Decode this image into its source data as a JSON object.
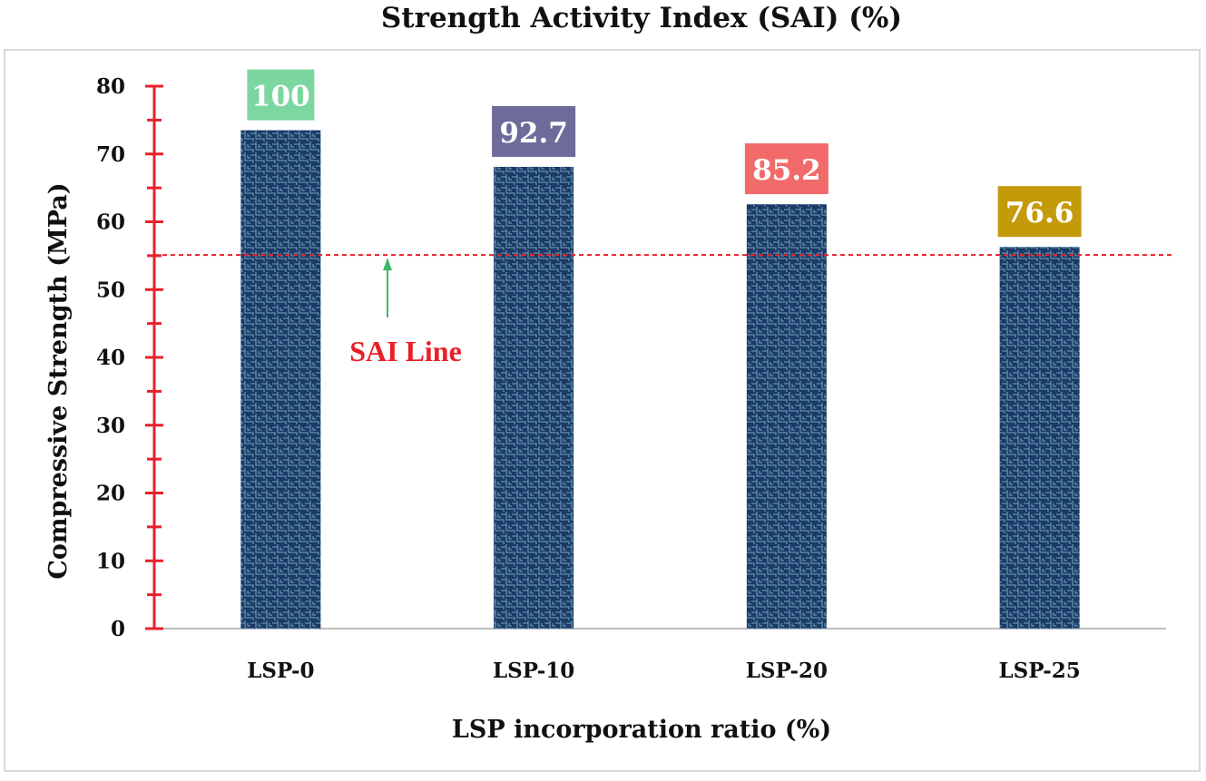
{
  "chart_data": {
    "type": "bar",
    "title": "Strength Activity Index (SAI) (%)",
    "xlabel": "LSP incorporation ratio (%)",
    "ylabel": "Compressive Strength (MPa)",
    "ylim": [
      0,
      80
    ],
    "yticks": [
      "0",
      "10",
      "20",
      "30",
      "40",
      "50",
      "60",
      "70",
      "80"
    ],
    "categories": [
      "LSP-0",
      "LSP-10",
      "LSP-20",
      "LSP-25"
    ],
    "values": [
      73.5,
      68.1,
      62.6,
      56.3
    ],
    "data_labels": [
      "100",
      "92.7",
      "85.2",
      "76.6"
    ],
    "data_label_colors": [
      "#7bd6a0",
      "#6c6b9a",
      "#f16b6b",
      "#c59a0a"
    ],
    "bar_color": "#1b3a66",
    "axis_color": "#e8202a",
    "reference_line": {
      "label": "SAI Line",
      "value": 55.1,
      "color": "#e8202a",
      "arrow_color": "#3cb86a"
    },
    "grid": false,
    "legend": "none"
  }
}
